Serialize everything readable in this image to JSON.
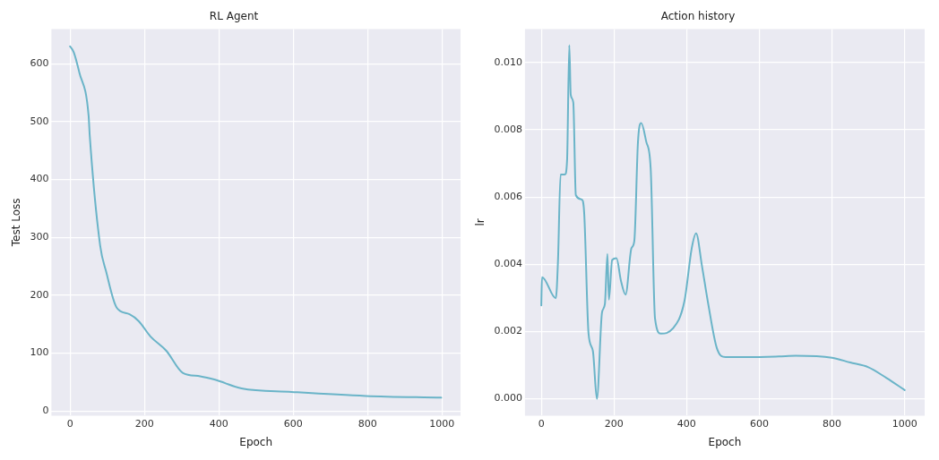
{
  "chart_data": [
    {
      "type": "line",
      "title": "RL Agent",
      "xlabel": "Epoch",
      "ylabel": "Test Loss",
      "xlim": [
        -50,
        1050
      ],
      "ylim": [
        -8,
        660
      ],
      "xticks": [
        0,
        200,
        400,
        600,
        800,
        1000
      ],
      "yticks": [
        0,
        100,
        200,
        300,
        400,
        500,
        600
      ],
      "grid": true,
      "legend": false,
      "marker": "none",
      "line_style": "solid",
      "series": [
        {
          "color": "#6ab4c8",
          "x": [
            0,
            10,
            25,
            50,
            53,
            81,
            97,
            125,
            160,
            185,
            216,
            259,
            303,
            350,
            390,
            461,
            596,
            795,
            998
          ],
          "values": [
            630,
            620,
            585,
            510,
            476,
            286,
            241,
            179,
            167,
            155,
            129,
            104,
            66,
            60,
            54,
            39,
            33,
            26,
            23
          ]
        }
      ]
    },
    {
      "type": "line",
      "title": "Action history",
      "xlabel": "Epoch",
      "ylabel": "lr",
      "xlim": [
        -45,
        1055
      ],
      "ylim": [
        -0.0005,
        0.011
      ],
      "xticks": [
        0,
        200,
        400,
        600,
        800,
        1000
      ],
      "yticks": [
        {
          "value": 0,
          "label": "0.000"
        },
        {
          "value": 0.002,
          "label": "0.002"
        },
        {
          "value": 0.004,
          "label": "0.004"
        },
        {
          "value": 0.006,
          "label": "0.006"
        },
        {
          "value": 0.008,
          "label": "0.008"
        },
        {
          "value": 0.01,
          "label": "0.010"
        }
      ],
      "grid": true,
      "legend": false,
      "marker": "none",
      "line_style": "solid",
      "series": [
        {
          "color": "#6ab4c8",
          "x": [
            0,
            2,
            40,
            46,
            53,
            65,
            71,
            77,
            81,
            88,
            95,
            111,
            118,
            130,
            142,
            153,
            167,
            175,
            182,
            186,
            195,
            207,
            219,
            232,
            248,
            256,
            266,
            275,
            289,
            301,
            313,
            329,
            361,
            394,
            414,
            426,
            442,
            458,
            483,
            507,
            572,
            654,
            700,
            800,
            850,
            900,
            950,
            1000
          ],
          "values": [
            0.00278,
            0.00362,
            0.00299,
            0.00413,
            0.00667,
            0.00667,
            0.00711,
            0.01052,
            0.00904,
            0.00882,
            0.00606,
            0.00593,
            0.00553,
            0.00194,
            0.00142,
            0.0,
            0.00256,
            0.00282,
            0.00431,
            0.00295,
            0.00413,
            0.00418,
            0.00352,
            0.0031,
            0.00448,
            0.0047,
            0.00764,
            0.0082,
            0.00764,
            0.00685,
            0.00238,
            0.00194,
            0.00208,
            0.00291,
            0.00448,
            0.00492,
            0.00396,
            0.00291,
            0.00151,
            0.00124,
            0.00124,
            0.00126,
            0.00128,
            0.00122,
            0.00108,
            0.00094,
            0.00062,
            0.00026
          ]
        }
      ]
    }
  ]
}
